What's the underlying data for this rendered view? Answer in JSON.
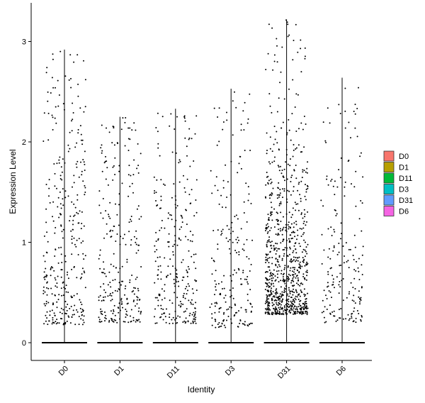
{
  "chart_data": {
    "type": "scatter",
    "subtype": "jittered violin/strip plot",
    "title": "",
    "xlabel": "Identity",
    "ylabel": "Expression Level",
    "categories": [
      "D0",
      "D1",
      "D11",
      "D3",
      "D31",
      "D6"
    ],
    "ylim": [
      -0.17,
      3.3
    ],
    "yticks": [
      0,
      1,
      2,
      3
    ],
    "x_tick_label_rotation": -45,
    "grid": false,
    "legend_position": "right",
    "legend": [
      {
        "name": "D0",
        "color": "#F8766D"
      },
      {
        "name": "D1",
        "color": "#B79F00"
      },
      {
        "name": "D11",
        "color": "#00BA38"
      },
      {
        "name": "D3",
        "color": "#00BFC4"
      },
      {
        "name": "D31",
        "color": "#619CFF"
      },
      {
        "name": "D6",
        "color": "#F564E3"
      }
    ],
    "series": [
      {
        "category": "D0",
        "max": 2.92,
        "min_nonzero": 0.18,
        "n_expressing": 330,
        "upper_bias": 0.5
      },
      {
        "category": "D1",
        "max": 2.25,
        "min_nonzero": 0.2,
        "n_expressing": 260,
        "upper_bias": 0.45
      },
      {
        "category": "D11",
        "max": 2.33,
        "min_nonzero": 0.19,
        "n_expressing": 270,
        "upper_bias": 0.4
      },
      {
        "category": "D3",
        "max": 2.53,
        "min_nonzero": 0.15,
        "n_expressing": 210,
        "upper_bias": 0.35
      },
      {
        "category": "D31",
        "max": 3.22,
        "min_nonzero": 0.28,
        "n_expressing": 850,
        "upper_bias": 0.15
      },
      {
        "category": "D6",
        "max": 2.64,
        "min_nonzero": 0.2,
        "n_expressing": 190,
        "upper_bias": 0.4
      }
    ],
    "zero_value": 0
  }
}
